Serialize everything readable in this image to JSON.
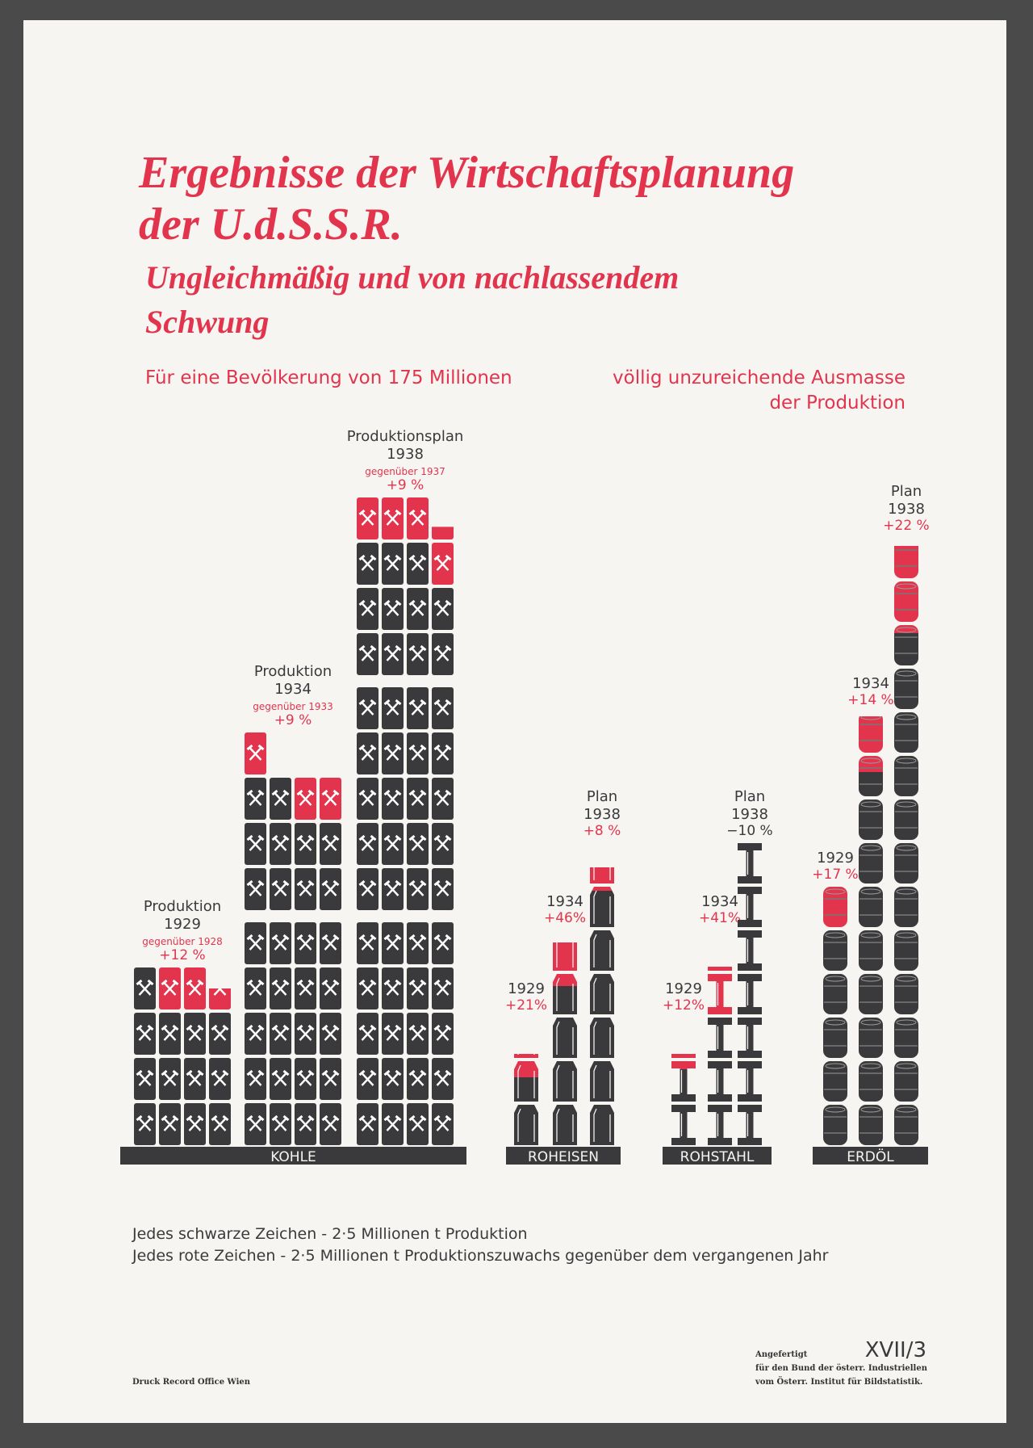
{
  "title": [
    "Ergebnisse der Wirtschaftsplanung",
    "der U.d.S.S.R."
  ],
  "subtitle": [
    "Ungleichmäßig und von nachlassendem",
    "Schwung"
  ],
  "note_left": "Für eine Bevölkerung von 175 Millionen",
  "note_right": [
    "völlig unzureichende Ausmasse",
    "der Produktion"
  ],
  "chart_data": {
    "type": "isotype",
    "colors": {
      "black": "#3a3a3c",
      "red": "#e2344c"
    },
    "groups": [
      {
        "name": "KOHLE",
        "icon": "coal",
        "series": [
          {
            "label": [
              "Produktion",
              "1929"
            ],
            "note": "gegenüber 1928",
            "change": "+12 %",
            "change_color": "#e2344c",
            "black": 13,
            "red": 2.5
          },
          {
            "label": [
              "Produktion",
              "1934"
            ],
            "note": "gegenüber 1933",
            "change": "+9 %",
            "change_color": "#e2344c",
            "black": 30,
            "red": 3
          },
          {
            "label": [
              "Produktionsplan",
              "1938"
            ],
            "note": "gegenüber 1937",
            "change": "+9 %",
            "change_color": "#e2344c",
            "black": 51,
            "red": 4.3
          }
        ]
      },
      {
        "name": "ROHEISEN",
        "icon": "ingot",
        "series": [
          {
            "label": [
              "1929"
            ],
            "change": "+21%",
            "change_color": "#e2344c",
            "black": 1.6,
            "red": 0.5
          },
          {
            "label": [
              "1934"
            ],
            "change": "+46%",
            "change_color": "#e2344c",
            "black": 3.7,
            "red": 1.0
          },
          {
            "label": [
              "Plan",
              "1938"
            ],
            "change": "+8 %",
            "change_color": "#e2344c",
            "black": 5.9,
            "red": 0.5
          }
        ]
      },
      {
        "name": "ROHSTAHL",
        "icon": "beam",
        "series": [
          {
            "label": [
              "1929"
            ],
            "change": "+12%",
            "change_color": "#e2344c",
            "black": 1.8,
            "red": 0.3
          },
          {
            "label": [
              "1934"
            ],
            "change": "+41%",
            "change_color": "#e2344c",
            "black": 3.0,
            "red": 1.1
          },
          {
            "label": [
              "Plan",
              "1938"
            ],
            "change": "−10 %",
            "change_color": "#3a3a3c",
            "black": 7.0,
            "red": 0
          }
        ]
      },
      {
        "name": "ERDÖL",
        "icon": "barrel",
        "series": [
          {
            "label": [
              "1929"
            ],
            "change": "+17 %",
            "change_color": "#e2344c",
            "black": 5.0,
            "red": 1.0
          },
          {
            "label": [
              "1934"
            ],
            "change": "+14 %",
            "change_color": "#e2344c",
            "black": 8.6,
            "red": 1.3
          },
          {
            "label": [
              "Plan",
              "1938"
            ],
            "change": "+22 %",
            "change_color": "#e2344c",
            "black": 11.8,
            "red": 2.0
          }
        ]
      }
    ],
    "legend": [
      "Jedes schwarze Zeichen - 2·5 Millionen t Produktion",
      "Jedes rote Zeichen - 2·5 Millionen t Produktionszuwachs gegenüber dem vergangenen Jahr"
    ]
  },
  "footer": {
    "printer": "Druck Record Office Wien",
    "plate": "XVII/3",
    "credit": [
      "Angefertigt",
      "für den Bund der österr. Industriellen",
      "vom Österr. Institut für Bildstatistik."
    ]
  }
}
